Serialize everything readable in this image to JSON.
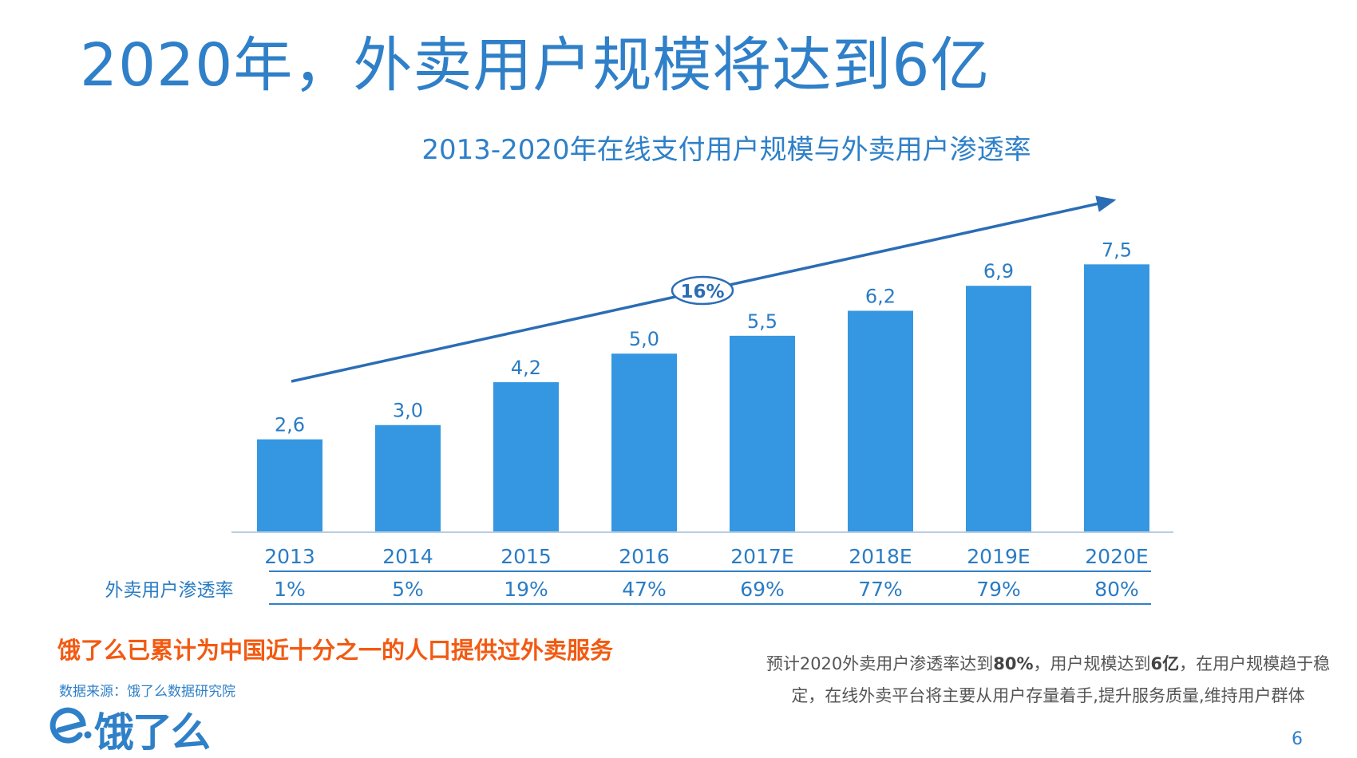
{
  "page": {
    "title": "2020年，外卖用户规模将达到6亿",
    "page_number": "6",
    "highlight": "饿了么已累计为中国近十分之一的人口提供过外卖服务",
    "source": "数据来源：饿了么数据研究院",
    "note": {
      "part1": "预计2020外卖用户渗透率达到",
      "bold1": "80%",
      "part2": "，用户规模达到",
      "bold2": "6亿",
      "part3": "，在用户规模趋于稳定，在线外卖平台将主要从用户存量着手,提升服务质量,维持用户群体"
    },
    "logo_text": "饿了么",
    "colors": {
      "accent": "#2f80c8",
      "bar": "#3597e1",
      "highlight": "#f25a12"
    }
  },
  "chart_data": {
    "type": "bar",
    "title": "2013-2020年在线支付用户规模与外卖用户渗透率",
    "categories": [
      "2013",
      "2014",
      "2015",
      "2016",
      "2017E",
      "2018E",
      "2019E",
      "2020E"
    ],
    "values": [
      2.6,
      3.0,
      4.2,
      5.0,
      5.5,
      6.2,
      6.9,
      7.5
    ],
    "value_labels": [
      "2,6",
      "3,0",
      "4,2",
      "5,0",
      "5,5",
      "6,2",
      "6,9",
      "7,5"
    ],
    "ylim": [
      0,
      8.2
    ],
    "growth_annotation": "16%",
    "table_row": {
      "label": "外卖用户渗透率",
      "values": [
        "1%",
        "5%",
        "19%",
        "47%",
        "69%",
        "77%",
        "79%",
        "80%"
      ]
    }
  }
}
